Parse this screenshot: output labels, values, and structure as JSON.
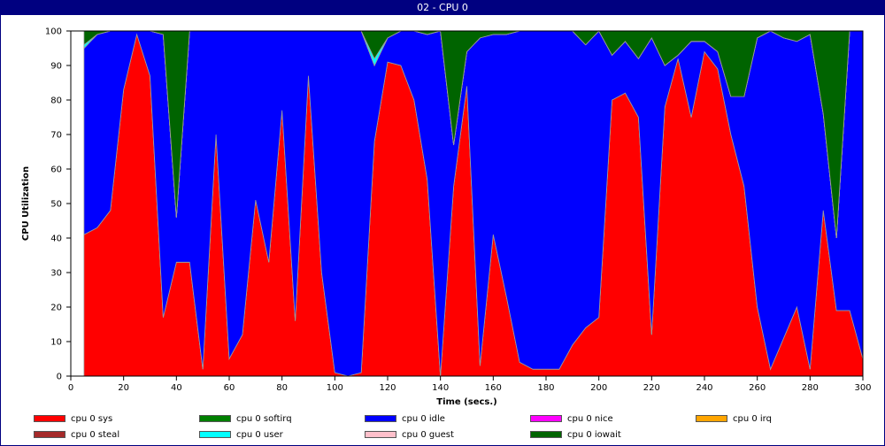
{
  "window": {
    "title": "02 - CPU 0"
  },
  "chart_data": {
    "type": "area",
    "stacked": true,
    "xlabel": "Time (secs.)",
    "ylabel": "CPU Utilization",
    "xlim": [
      0,
      300
    ],
    "ylim": [
      0,
      100
    ],
    "xticks": [
      0,
      20,
      40,
      60,
      80,
      100,
      120,
      140,
      160,
      180,
      200,
      220,
      240,
      260,
      280,
      300
    ],
    "yticks": [
      0,
      10,
      20,
      30,
      40,
      50,
      60,
      70,
      80,
      90,
      100
    ],
    "grid": false,
    "legend_position": "bottom",
    "x": [
      5,
      10,
      15,
      20,
      25,
      30,
      35,
      40,
      45,
      50,
      55,
      60,
      65,
      70,
      75,
      80,
      85,
      90,
      95,
      100,
      105,
      110,
      115,
      120,
      125,
      130,
      135,
      140,
      145,
      150,
      155,
      160,
      165,
      170,
      175,
      180,
      185,
      190,
      195,
      200,
      205,
      210,
      215,
      220,
      225,
      230,
      235,
      240,
      245,
      250,
      255,
      260,
      265,
      270,
      275,
      280,
      285,
      290,
      295,
      300
    ],
    "series": [
      {
        "name": "cpu 0 sys",
        "color": "#ff0000",
        "values": [
          41,
          43,
          48,
          83,
          99,
          87,
          17,
          33,
          33,
          2,
          70,
          5,
          12,
          51,
          33,
          77,
          16,
          87,
          30,
          1,
          0,
          1,
          68,
          91,
          90,
          80,
          57,
          0,
          55,
          84,
          3,
          41,
          23,
          4,
          2,
          2,
          2,
          9,
          14,
          17,
          80,
          82,
          75,
          12,
          78,
          92,
          75,
          94,
          89,
          70,
          55,
          20,
          2,
          11,
          20,
          2,
          48,
          19,
          19,
          5
        ]
      },
      {
        "name": "cpu 0 softirq",
        "color": "#008000",
        "values": [
          0,
          0,
          0,
          0,
          0,
          0,
          0,
          0,
          0,
          0,
          0,
          0,
          0,
          0,
          0,
          0,
          0,
          0,
          0,
          0,
          0,
          0,
          0,
          0,
          0,
          0,
          0,
          0,
          0,
          0,
          0,
          0,
          0,
          0,
          0,
          0,
          0,
          0,
          0,
          0,
          0,
          0,
          0,
          0,
          0,
          0,
          0,
          0,
          0,
          0,
          0,
          0,
          0,
          0,
          0,
          0,
          0,
          0,
          0,
          0
        ]
      },
      {
        "name": "cpu 0 idle",
        "color": "#0000ff",
        "values": [
          54,
          56,
          52,
          17,
          1,
          13,
          82,
          13,
          67,
          98,
          30,
          95,
          88,
          49,
          67,
          23,
          84,
          13,
          70,
          99,
          100,
          99,
          22,
          7,
          10,
          20,
          42,
          100,
          12,
          10,
          95,
          58,
          76,
          96,
          98,
          98,
          98,
          91,
          82,
          83,
          13,
          15,
          17,
          86,
          12,
          1,
          22,
          3,
          5,
          11,
          26,
          78,
          98,
          87,
          77,
          97,
          28,
          21,
          81,
          95
        ]
      },
      {
        "name": "cpu 0 nice",
        "color": "#ff00ff",
        "values": [
          0,
          0,
          0,
          0,
          0,
          0,
          0,
          0,
          0,
          0,
          0,
          0,
          0,
          0,
          0,
          0,
          0,
          0,
          0,
          0,
          0,
          0,
          0,
          0,
          0,
          0,
          0,
          0,
          0,
          0,
          0,
          0,
          0,
          0,
          0,
          0,
          0,
          0,
          0,
          0,
          0,
          0,
          0,
          0,
          0,
          0,
          0,
          0,
          0,
          0,
          0,
          0,
          0,
          0,
          0,
          0,
          0,
          0,
          0,
          0
        ]
      },
      {
        "name": "cpu 0 irq",
        "color": "#ffa500",
        "values": [
          0,
          0,
          0,
          0,
          0,
          0,
          0,
          0,
          0,
          0,
          0,
          0,
          0,
          0,
          0,
          0,
          0,
          0,
          0,
          0,
          0,
          0,
          0,
          0,
          0,
          0,
          0,
          0,
          0,
          0,
          0,
          0,
          0,
          0,
          0,
          0,
          0,
          0,
          0,
          0,
          0,
          0,
          0,
          0,
          0,
          0,
          0,
          0,
          0,
          0,
          0,
          0,
          0,
          0,
          0,
          0,
          0,
          0,
          0,
          0
        ]
      },
      {
        "name": "cpu 0 steal",
        "color": "#a52a2a",
        "values": [
          0,
          0,
          0,
          0,
          0,
          0,
          0,
          0,
          0,
          0,
          0,
          0,
          0,
          0,
          0,
          0,
          0,
          0,
          0,
          0,
          0,
          0,
          0,
          0,
          0,
          0,
          0,
          0,
          0,
          0,
          0,
          0,
          0,
          0,
          0,
          0,
          0,
          0,
          0,
          0,
          0,
          0,
          0,
          0,
          0,
          0,
          0,
          0,
          0,
          0,
          0,
          0,
          0,
          0,
          0,
          0,
          0,
          0,
          0,
          0
        ]
      },
      {
        "name": "cpu 0 user",
        "color": "#00ffff",
        "values": [
          1,
          0,
          0,
          0,
          0,
          0,
          0,
          0,
          0,
          0,
          0,
          0,
          0,
          0,
          0,
          0,
          0,
          0,
          0,
          0,
          0,
          0,
          2,
          0,
          0,
          0,
          0,
          0,
          0,
          0,
          0,
          0,
          0,
          0,
          0,
          0,
          0,
          0,
          0,
          0,
          0,
          0,
          0,
          0,
          0,
          0,
          0,
          0,
          0,
          0,
          0,
          0,
          0,
          0,
          0,
          0,
          0,
          0,
          0,
          0
        ]
      },
      {
        "name": "cpu 0 guest",
        "color": "#ffc0cb",
        "values": [
          0,
          0,
          0,
          0,
          0,
          0,
          0,
          0,
          0,
          0,
          0,
          0,
          0,
          0,
          0,
          0,
          0,
          0,
          0,
          0,
          0,
          0,
          0,
          0,
          0,
          0,
          0,
          0,
          0,
          0,
          0,
          0,
          0,
          0,
          0,
          0,
          0,
          0,
          0,
          0,
          0,
          0,
          0,
          0,
          0,
          0,
          0,
          0,
          0,
          0,
          0,
          0,
          0,
          0,
          0,
          0,
          0,
          0,
          0,
          0
        ]
      },
      {
        "name": "cpu 0 iowait",
        "color": "#006400",
        "values": [
          4,
          1,
          0,
          0,
          0,
          0,
          1,
          54,
          0,
          0,
          0,
          0,
          0,
          0,
          0,
          0,
          0,
          0,
          0,
          0,
          0,
          0,
          8,
          2,
          0,
          0,
          1,
          0,
          33,
          6,
          2,
          1,
          1,
          0,
          0,
          0,
          0,
          0,
          4,
          0,
          7,
          3,
          8,
          2,
          10,
          7,
          3,
          3,
          6,
          19,
          19,
          2,
          0,
          2,
          3,
          1,
          24,
          60,
          0,
          0
        ]
      }
    ]
  }
}
